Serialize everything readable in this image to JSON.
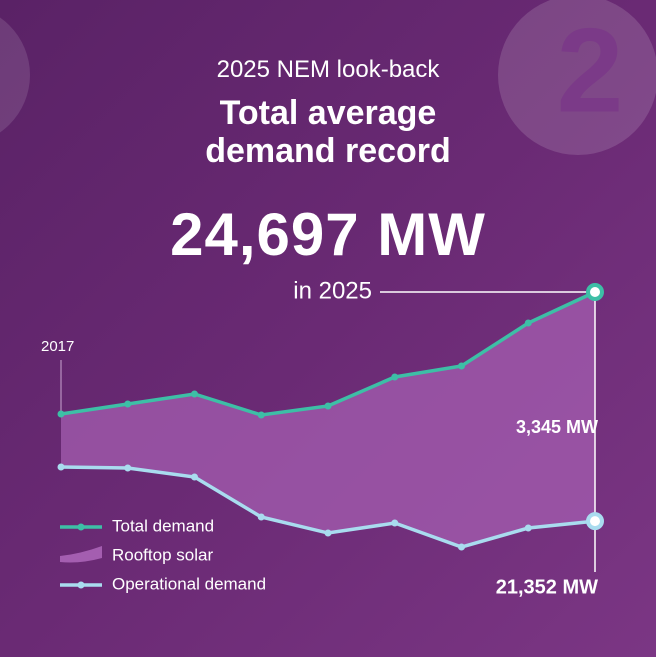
{
  "chart_data": {
    "type": "line",
    "subtitle": "2025 NEM look-back",
    "title": "Total average demand record",
    "badge": "2",
    "categories": [
      "2017",
      null,
      null,
      null,
      null,
      null,
      null,
      null,
      null
    ],
    "end_label": "in 2025",
    "series": [
      {
        "name": "Total demand",
        "color": "#3dbfa6",
        "values": [
          22916,
          23062,
          23208,
          22901,
          23033,
          23456,
          23617,
          24244,
          24697
        ],
        "value_labels": [
          null,
          null,
          null,
          null,
          null,
          null,
          null,
          null,
          "24,697 MW"
        ]
      },
      {
        "name": "Operational demand",
        "color": "#a9dcef",
        "values": [
          22142,
          22127,
          21996,
          21412,
          21178,
          21324,
          20974,
          21251,
          21352
        ],
        "value_labels": [
          null,
          null,
          null,
          null,
          null,
          null,
          null,
          null,
          "21,352 MW"
        ]
      }
    ],
    "area": {
      "name": "Rooftop solar",
      "color": "#a45eb0",
      "value": 3345,
      "label": "3,345 MW"
    }
  }
}
